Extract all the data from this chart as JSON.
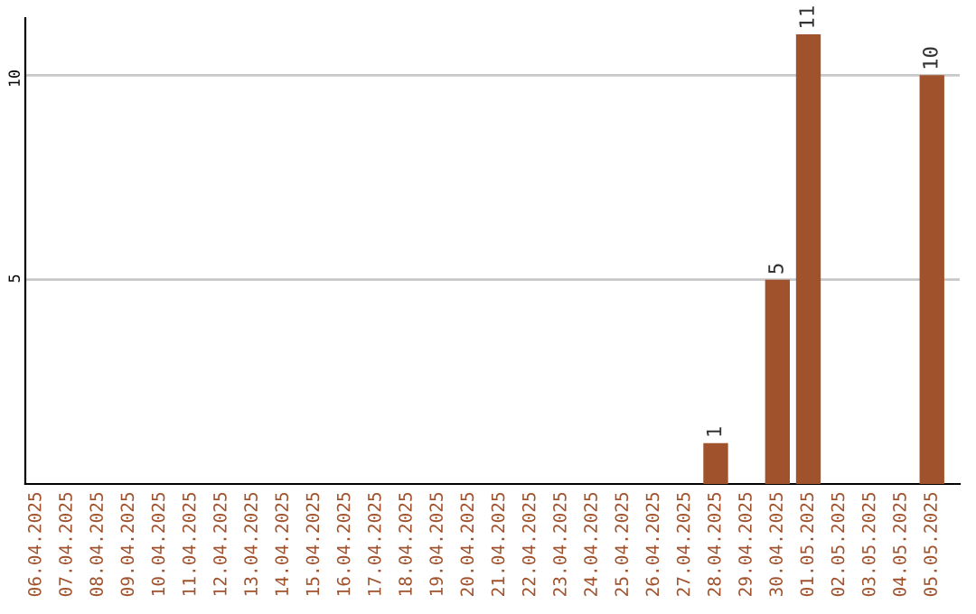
{
  "chart_data": {
    "type": "bar",
    "categories": [
      "06.04.2025",
      "07.04.2025",
      "08.04.2025",
      "09.04.2025",
      "10.04.2025",
      "11.04.2025",
      "12.04.2025",
      "13.04.2025",
      "14.04.2025",
      "15.04.2025",
      "16.04.2025",
      "17.04.2025",
      "18.04.2025",
      "19.04.2025",
      "20.04.2025",
      "21.04.2025",
      "22.04.2025",
      "23.04.2025",
      "24.04.2025",
      "25.04.2025",
      "26.04.2025",
      "27.04.2025",
      "28.04.2025",
      "29.04.2025",
      "30.04.2025",
      "01.05.2025",
      "02.05.2025",
      "03.05.2025",
      "04.05.2025",
      "05.05.2025"
    ],
    "values": [
      0,
      0,
      0,
      0,
      0,
      0,
      0,
      0,
      0,
      0,
      0,
      0,
      0,
      0,
      0,
      0,
      0,
      0,
      0,
      0,
      0,
      0,
      1,
      0,
      5,
      11,
      0,
      0,
      0,
      10
    ],
    "value_labels": [
      null,
      null,
      null,
      null,
      null,
      null,
      null,
      null,
      null,
      null,
      null,
      null,
      null,
      null,
      null,
      null,
      null,
      null,
      null,
      null,
      null,
      null,
      "1",
      null,
      "5",
      "11",
      null,
      null,
      null,
      "10"
    ],
    "color": "#a0522d",
    "ylim": [
      0,
      11.4
    ],
    "yticks": [
      5,
      10
    ],
    "grid": "y"
  }
}
